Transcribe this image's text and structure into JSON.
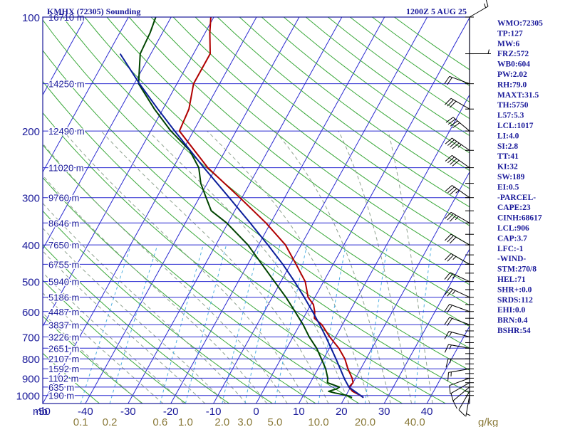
{
  "header": {
    "station": "KMHX (72305) Sounding",
    "time": "1200Z  5 AUG 25"
  },
  "indices": [
    "WMO:72305",
    "TP:127",
    "MW:6",
    "FRZ:572",
    "WB0:604",
    "PW:2.02",
    "RH:79.0",
    "MAXT:31.5",
    "TH:5750",
    "L57:5.3",
    "LCL:1017",
    "LI:4.0",
    "SI:2.8",
    "TT:41",
    "KI:32",
    "SW:189",
    "EI:0.5",
    "-PARCEL-",
    "CAPE:23",
    "CINH:68617",
    "LCL:906",
    "CAP:3.7",
    "LFC:-1",
    "-WIND-",
    "STM:270/8",
    "HEL:71",
    "SHR+:0.0",
    "SRDS:112",
    "EHI:0.0",
    "BRN:0.4",
    "BSHR:54"
  ],
  "colors": {
    "temperature": "#b00000",
    "dewpoint": "#004400",
    "parcel": "#0a1e9a",
    "isobar": "#2a2ad0",
    "isotherm": "#2a2ad0",
    "dry_adiabat": "#3aa83a",
    "moist_adiabat": "#8fa28f",
    "mixing_ratio": "#50b0e0",
    "text": "#1a1a9a",
    "mixing_ratio_text": "#8a7a3a"
  },
  "chart_data": {
    "type": "line",
    "title": "KMHX (72305) Sounding",
    "pressure_axis_label": "mb",
    "mixing_ratio_unit": "g/kg",
    "pressure_ticks": [
      100,
      200,
      300,
      400,
      500,
      600,
      700,
      800,
      900,
      1000
    ],
    "pressure_tick_labels": [
      "100",
      "200",
      "300",
      "400",
      "500",
      "600",
      "700",
      "800",
      "900",
      "1000"
    ],
    "temperature_ticks": [
      -50,
      -40,
      -30,
      -20,
      -10,
      0,
      10,
      20,
      30,
      40
    ],
    "temperature_tick_labels": [
      "-50",
      "-40",
      "-30",
      "-20",
      "-10",
      "0",
      "10",
      "20",
      "30",
      "40"
    ],
    "temperature_range": [
      -50,
      50
    ],
    "mixing_ratio_labels": [
      {
        "g": 0.1,
        "text": "0.1"
      },
      {
        "g": 0.2,
        "text": "0.2"
      },
      {
        "g": 0.6,
        "text": "0.6"
      },
      {
        "g": 1.0,
        "text": "1.0"
      },
      {
        "g": 2.0,
        "text": "2.0"
      },
      {
        "g": 3.0,
        "text": "3.0"
      },
      {
        "g": 5.0,
        "text": "5.0"
      },
      {
        "g": 10.0,
        "text": "10.0"
      },
      {
        "g": 20.0,
        "text": "20.0"
      },
      {
        "g": 40.0,
        "text": "40.0"
      }
    ],
    "height_labels": [
      {
        "p": 100,
        "text": "16710 m"
      },
      {
        "p": 150,
        "text": "14250 m"
      },
      {
        "p": 200,
        "text": "12490 m"
      },
      {
        "p": 250,
        "text": "11020 m"
      },
      {
        "p": 300,
        "text": "9760 m"
      },
      {
        "p": 350,
        "text": "8646 m"
      },
      {
        "p": 400,
        "text": "7650 m"
      },
      {
        "p": 450,
        "text": "6755 m"
      },
      {
        "p": 500,
        "text": "5940 m"
      },
      {
        "p": 550,
        "text": "5186 m"
      },
      {
        "p": 600,
        "text": "4487 m"
      },
      {
        "p": 650,
        "text": "3837 m"
      },
      {
        "p": 700,
        "text": "3226 m"
      },
      {
        "p": 750,
        "text": "2651 m"
      },
      {
        "p": 800,
        "text": "2107 m"
      },
      {
        "p": 850,
        "text": "1592 m"
      },
      {
        "p": 900,
        "text": "1102 m"
      },
      {
        "p": 950,
        "text": "635 m"
      },
      {
        "p": 1000,
        "text": "190 m"
      }
    ],
    "series": [
      {
        "key": "temperature",
        "points": [
          [
            1013,
            24.4
          ],
          [
            1000,
            23.4
          ],
          [
            975,
            21.0
          ],
          [
            950,
            19.6
          ],
          [
            925,
            20.0
          ],
          [
            900,
            19.2
          ],
          [
            850,
            17.0
          ],
          [
            800,
            15.0
          ],
          [
            750,
            12.2
          ],
          [
            700,
            8.6
          ],
          [
            650,
            5.2
          ],
          [
            625,
            2.6
          ],
          [
            600,
            1.8
          ],
          [
            575,
            0.6
          ],
          [
            550,
            -1.6
          ],
          [
            500,
            -4.3
          ],
          [
            450,
            -8.7
          ],
          [
            400,
            -13.7
          ],
          [
            350,
            -21.1
          ],
          [
            300,
            -30.5
          ],
          [
            250,
            -41.9
          ],
          [
            200,
            -53.3
          ],
          [
            175,
            -53.9
          ],
          [
            150,
            -56.1
          ],
          [
            125,
            -56.1
          ],
          [
            110,
            -58.9
          ],
          [
            100,
            -60.7
          ]
        ]
      },
      {
        "key": "dewpoint",
        "points": [
          [
            1013,
            21.7
          ],
          [
            1000,
            20.3
          ],
          [
            985,
            17.1
          ],
          [
            975,
            15.4
          ],
          [
            960,
            17.0
          ],
          [
            950,
            17.4
          ],
          [
            925,
            14.0
          ],
          [
            900,
            13.5
          ],
          [
            850,
            11.8
          ],
          [
            800,
            9.5
          ],
          [
            750,
            7.0
          ],
          [
            700,
            3.8
          ],
          [
            650,
            0.8
          ],
          [
            600,
            -2.8
          ],
          [
            550,
            -6.8
          ],
          [
            500,
            -11.5
          ],
          [
            450,
            -16.7
          ],
          [
            400,
            -22.5
          ],
          [
            350,
            -30.3
          ],
          [
            325,
            -35.5
          ],
          [
            300,
            -38.4
          ],
          [
            275,
            -41.5
          ],
          [
            250,
            -44.0
          ],
          [
            225,
            -48.4
          ],
          [
            200,
            -55.3
          ],
          [
            175,
            -62.0
          ],
          [
            150,
            -69.0
          ],
          [
            125,
            -72.5
          ],
          [
            110,
            -72.9
          ],
          [
            100,
            -73.6
          ]
        ]
      },
      {
        "key": "parcel",
        "points": [
          [
            1013,
            24.4
          ],
          [
            950,
            19.6
          ],
          [
            906,
            17.6
          ],
          [
            850,
            15.2
          ],
          [
            800,
            12.9
          ],
          [
            750,
            10.4
          ],
          [
            700,
            7.7
          ],
          [
            650,
            4.7
          ],
          [
            600,
            1.3
          ],
          [
            550,
            -2.5
          ],
          [
            500,
            -6.8
          ],
          [
            450,
            -11.8
          ],
          [
            400,
            -17.8
          ],
          [
            350,
            -24.8
          ],
          [
            300,
            -33.0
          ],
          [
            250,
            -42.8
          ],
          [
            200,
            -54.4
          ],
          [
            175,
            -61.2
          ],
          [
            150,
            -68.8
          ],
          [
            125,
            -77.2
          ]
        ]
      }
    ],
    "wind_barbs": [
      {
        "p": 1000,
        "dir": 190,
        "spd": 5
      },
      {
        "p": 975,
        "dir": 210,
        "spd": 10
      },
      {
        "p": 950,
        "dir": 230,
        "spd": 10
      },
      {
        "p": 925,
        "dir": 240,
        "spd": 10
      },
      {
        "p": 900,
        "dir": 250,
        "spd": 10
      },
      {
        "p": 850,
        "dir": 260,
        "spd": 15
      },
      {
        "p": 800,
        "dir": 270,
        "spd": 15
      },
      {
        "p": 750,
        "dir": 280,
        "spd": 15
      },
      {
        "p": 700,
        "dir": 285,
        "spd": 15
      },
      {
        "p": 650,
        "dir": 290,
        "spd": 20
      },
      {
        "p": 600,
        "dir": 290,
        "spd": 20
      },
      {
        "p": 550,
        "dir": 295,
        "spd": 25
      },
      {
        "p": 500,
        "dir": 295,
        "spd": 25
      },
      {
        "p": 450,
        "dir": 300,
        "spd": 25
      },
      {
        "p": 400,
        "dir": 300,
        "spd": 30
      },
      {
        "p": 350,
        "dir": 300,
        "spd": 35
      },
      {
        "p": 300,
        "dir": 305,
        "spd": 35
      },
      {
        "p": 250,
        "dir": 305,
        "spd": 40
      },
      {
        "p": 225,
        "dir": 305,
        "spd": 45
      },
      {
        "p": 200,
        "dir": 310,
        "spd": 40
      },
      {
        "p": 175,
        "dir": 300,
        "spd": 30
      },
      {
        "p": 150,
        "dir": 290,
        "spd": 20
      },
      {
        "p": 125,
        "dir": 90,
        "spd": 5
      },
      {
        "p": 100,
        "dir": 60,
        "spd": 15
      }
    ],
    "grid": true,
    "legend": "none"
  }
}
